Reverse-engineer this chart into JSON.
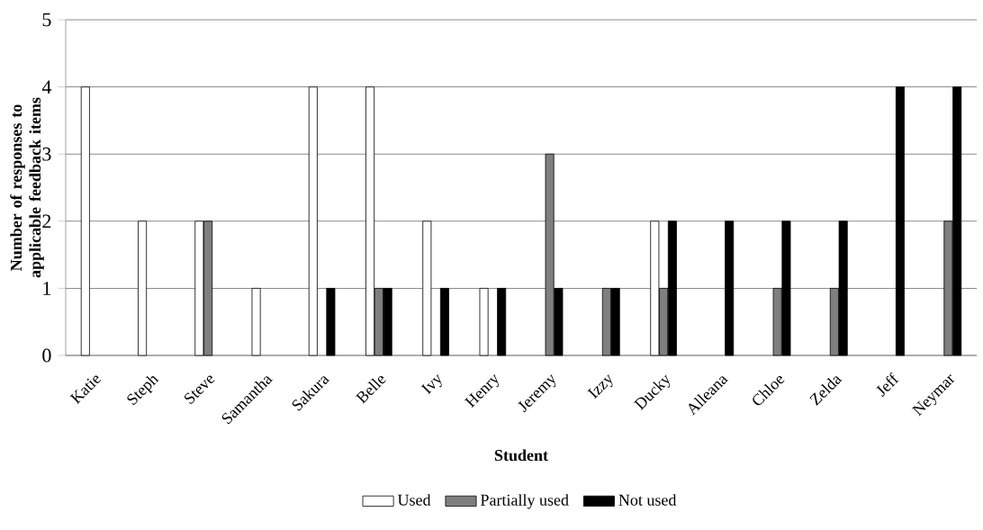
{
  "chart_data": {
    "type": "bar",
    "xlabel": "Student",
    "ylabel": "Number of responses to applicable feedback items",
    "categories": [
      "Katie",
      "Steph",
      "Steve",
      "Samantha",
      "Sakura",
      "Belle",
      "Ivy",
      "Henry",
      "Jeremy",
      "Izzy",
      "Ducky",
      "Alleana",
      "Chloe",
      "Zelda",
      "Jeff",
      "Neymar"
    ],
    "series": [
      {
        "name": "Used",
        "color": "#ffffff",
        "values": [
          4,
          2,
          2,
          1,
          4,
          4,
          2,
          1,
          0,
          0,
          2,
          0,
          0,
          0,
          0,
          0
        ]
      },
      {
        "name": "Partially used",
        "color": "#7f7f7f",
        "values": [
          0,
          0,
          2,
          0,
          0,
          1,
          0,
          0,
          3,
          1,
          1,
          0,
          1,
          1,
          0,
          2
        ]
      },
      {
        "name": "Not used",
        "color": "#000000",
        "values": [
          0,
          0,
          0,
          0,
          1,
          1,
          1,
          1,
          1,
          1,
          2,
          2,
          2,
          2,
          4,
          4
        ]
      }
    ],
    "ylim": [
      0,
      5
    ],
    "yticks": [
      0,
      1,
      2,
      3,
      4,
      5
    ],
    "grid": "y",
    "legend": "bottom"
  }
}
